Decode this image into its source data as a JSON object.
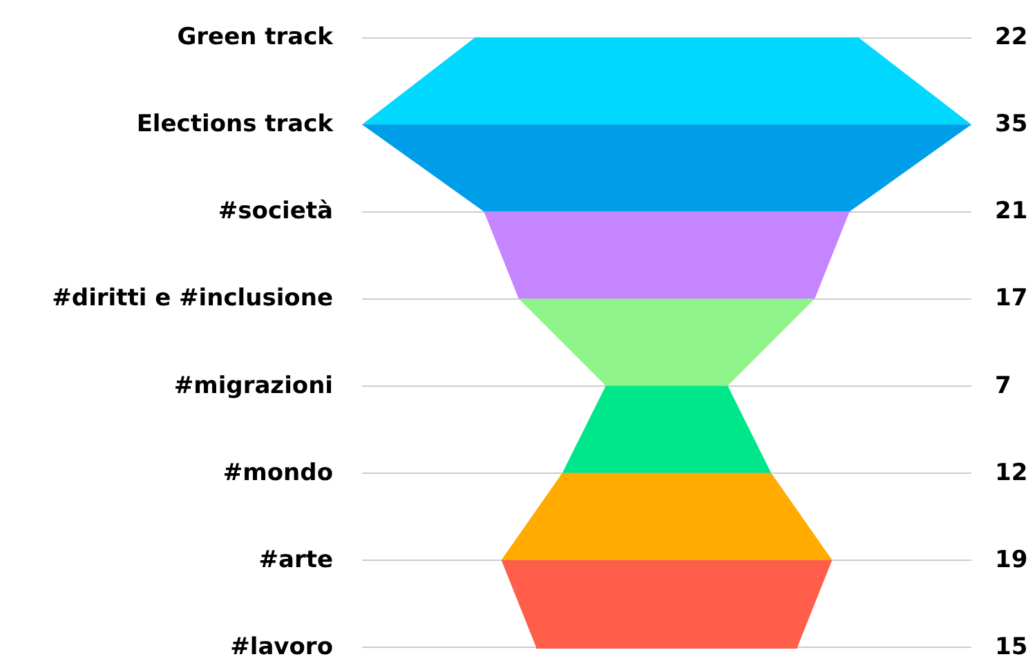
{
  "chart_data": {
    "type": "other",
    "categories": [
      "Green track",
      "Elections track",
      "#società",
      "#diritti e #inclusione",
      "#migrazioni",
      "#mondo",
      "#arte",
      "#lavoro"
    ],
    "values": [
      22,
      35,
      21,
      17,
      7,
      12,
      19,
      15
    ],
    "colors": [
      "#00d8ff",
      "#009de9",
      "#c585ff",
      "#90f38a",
      "#00e68a",
      "#ffab00",
      "#ff5f4a",
      "#ff5f4a"
    ],
    "data_labels": true
  }
}
